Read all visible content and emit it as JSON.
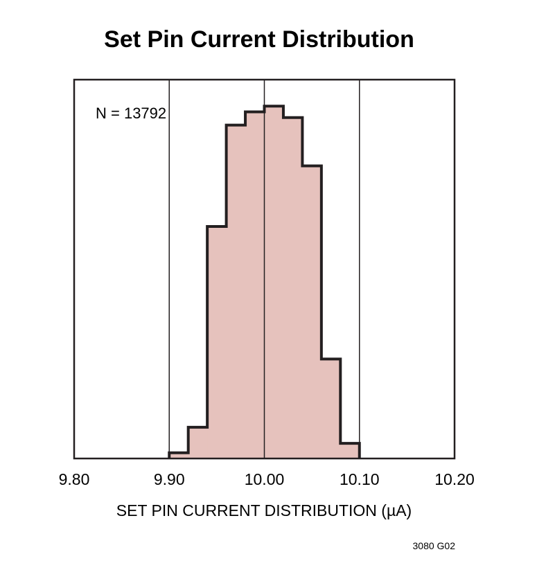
{
  "chart_data": {
    "type": "bar",
    "title": "Set Pin Current Distribution",
    "xlabel": "SET PIN CURRENT DISTRIBUTION (µA)",
    "ylabel": "",
    "xlim": [
      9.8,
      10.2
    ],
    "x_ticks": [
      "9.80",
      "9.90",
      "10.00",
      "10.10",
      "10.20"
    ],
    "grid_x": [
      9.9,
      10.0,
      10.1
    ],
    "annotation": "N = 13792",
    "figure_id": "3080 G02",
    "bin_width": 0.02,
    "bins_start": [
      9.9,
      9.92,
      9.94,
      9.96,
      9.98,
      10.0,
      10.02,
      10.04,
      10.06,
      10.08
    ],
    "values": [
      0.6,
      3.3,
      24.5,
      35.2,
      36.6,
      37.2,
      36.0,
      30.9,
      10.5,
      1.6
    ],
    "fill_color": "#e6c2bd",
    "edge_color": "#231f20"
  }
}
